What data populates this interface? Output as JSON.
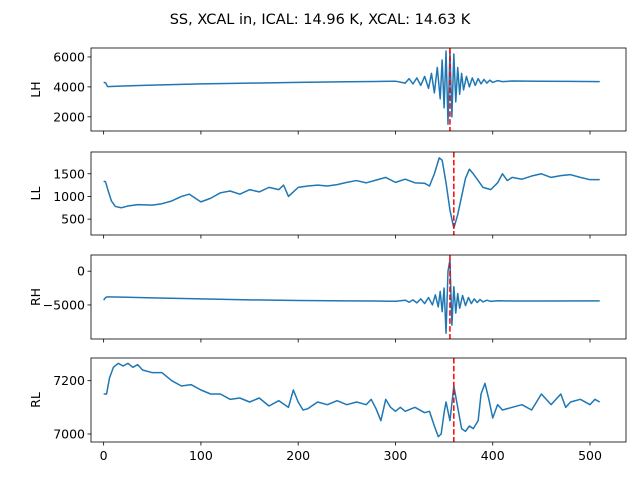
{
  "chart_data": {
    "type": "line",
    "title": "SS, XCAL in, ICAL: 14.96 K, XCAL: 14.63 K",
    "x_ticks": [
      0,
      100,
      200,
      300,
      400,
      500
    ],
    "xlim": [
      -13,
      537
    ],
    "series_color": "#1f77b4",
    "marker_color": "#ff0000",
    "panels": [
      {
        "ylabel": "LH",
        "ylim": [
          1050,
          6600
        ],
        "y_ticks": [
          2000,
          4000,
          6000
        ],
        "y_tick_labels": [
          "2000",
          "4000",
          "6000"
        ],
        "marker_x": 356,
        "points": [
          [
            0,
            4300
          ],
          [
            2,
            4280
          ],
          [
            4,
            4020
          ],
          [
            20,
            4060
          ],
          [
            50,
            4120
          ],
          [
            100,
            4200
          ],
          [
            150,
            4250
          ],
          [
            200,
            4300
          ],
          [
            250,
            4340
          ],
          [
            280,
            4360
          ],
          [
            300,
            4380
          ],
          [
            310,
            4250
          ],
          [
            314,
            4550
          ],
          [
            318,
            4200
          ],
          [
            322,
            4600
          ],
          [
            326,
            4100
          ],
          [
            330,
            4700
          ],
          [
            334,
            3900
          ],
          [
            337,
            4900
          ],
          [
            340,
            3600
          ],
          [
            343,
            5300
          ],
          [
            346,
            3200
          ],
          [
            348,
            5800
          ],
          [
            350,
            2600
          ],
          [
            352,
            6400
          ],
          [
            354,
            1500
          ],
          [
            356,
            6400
          ],
          [
            358,
            2000
          ],
          [
            360,
            6200
          ],
          [
            362,
            3000
          ],
          [
            364,
            5300
          ],
          [
            366,
            3500
          ],
          [
            368,
            4900
          ],
          [
            370,
            3800
          ],
          [
            373,
            4700
          ],
          [
            376,
            4000
          ],
          [
            379,
            4600
          ],
          [
            382,
            4100
          ],
          [
            385,
            4550
          ],
          [
            388,
            4200
          ],
          [
            391,
            4500
          ],
          [
            394,
            4250
          ],
          [
            397,
            4450
          ],
          [
            400,
            4300
          ],
          [
            405,
            4420
          ],
          [
            410,
            4350
          ],
          [
            420,
            4390
          ],
          [
            450,
            4380
          ],
          [
            480,
            4370
          ],
          [
            510,
            4350
          ]
        ]
      },
      {
        "ylabel": "LL",
        "ylim": [
          150,
          1980
        ],
        "y_ticks": [
          500,
          1000,
          1500
        ],
        "y_tick_labels": [
          "500",
          "1000",
          "1500"
        ],
        "marker_x": 360,
        "points": [
          [
            0,
            1340
          ],
          [
            2,
            1320
          ],
          [
            5,
            1100
          ],
          [
            8,
            900
          ],
          [
            12,
            780
          ],
          [
            18,
            750
          ],
          [
            25,
            790
          ],
          [
            35,
            820
          ],
          [
            50,
            810
          ],
          [
            60,
            840
          ],
          [
            70,
            900
          ],
          [
            80,
            1000
          ],
          [
            88,
            1050
          ],
          [
            95,
            950
          ],
          [
            100,
            880
          ],
          [
            110,
            960
          ],
          [
            120,
            1080
          ],
          [
            130,
            1120
          ],
          [
            140,
            1050
          ],
          [
            150,
            1150
          ],
          [
            160,
            1100
          ],
          [
            170,
            1200
          ],
          [
            180,
            1150
          ],
          [
            185,
            1250
          ],
          [
            190,
            1000
          ],
          [
            195,
            1100
          ],
          [
            200,
            1200
          ],
          [
            210,
            1230
          ],
          [
            220,
            1250
          ],
          [
            230,
            1230
          ],
          [
            240,
            1260
          ],
          [
            250,
            1310
          ],
          [
            260,
            1350
          ],
          [
            270,
            1300
          ],
          [
            280,
            1360
          ],
          [
            290,
            1420
          ],
          [
            300,
            1310
          ],
          [
            310,
            1380
          ],
          [
            320,
            1300
          ],
          [
            330,
            1290
          ],
          [
            335,
            1230
          ],
          [
            340,
            1500
          ],
          [
            345,
            1850
          ],
          [
            348,
            1800
          ],
          [
            352,
            1300
          ],
          [
            356,
            700
          ],
          [
            360,
            300
          ],
          [
            364,
            600
          ],
          [
            368,
            1000
          ],
          [
            372,
            1400
          ],
          [
            376,
            1600
          ],
          [
            380,
            1500
          ],
          [
            385,
            1350
          ],
          [
            390,
            1200
          ],
          [
            398,
            1150
          ],
          [
            405,
            1300
          ],
          [
            410,
            1500
          ],
          [
            415,
            1350
          ],
          [
            420,
            1420
          ],
          [
            430,
            1380
          ],
          [
            440,
            1450
          ],
          [
            450,
            1500
          ],
          [
            460,
            1420
          ],
          [
            470,
            1460
          ],
          [
            480,
            1480
          ],
          [
            490,
            1420
          ],
          [
            500,
            1370
          ],
          [
            510,
            1370
          ]
        ]
      },
      {
        "ylabel": "RH",
        "ylim": [
          -10050,
          2400
        ],
        "y_ticks": [
          -5000,
          0
        ],
        "y_tick_labels": [
          "−5000",
          "0"
        ],
        "marker_x": 356,
        "points": [
          [
            0,
            -4300
          ],
          [
            2,
            -3900
          ],
          [
            4,
            -3800
          ],
          [
            50,
            -3950
          ],
          [
            100,
            -4100
          ],
          [
            150,
            -4250
          ],
          [
            200,
            -4350
          ],
          [
            250,
            -4400
          ],
          [
            280,
            -4420
          ],
          [
            300,
            -4450
          ],
          [
            310,
            -4300
          ],
          [
            314,
            -4600
          ],
          [
            318,
            -4250
          ],
          [
            322,
            -4700
          ],
          [
            326,
            -4100
          ],
          [
            330,
            -4800
          ],
          [
            334,
            -3900
          ],
          [
            338,
            -5000
          ],
          [
            341,
            -3500
          ],
          [
            344,
            -5300
          ],
          [
            346,
            -3000
          ],
          [
            348,
            -6000
          ],
          [
            350,
            -2500
          ],
          [
            352,
            -9200
          ],
          [
            354,
            0
          ],
          [
            356,
            1700
          ],
          [
            358,
            -8000
          ],
          [
            360,
            -2300
          ],
          [
            362,
            -6200
          ],
          [
            364,
            -3300
          ],
          [
            366,
            -5500
          ],
          [
            369,
            -3600
          ],
          [
            372,
            -5100
          ],
          [
            375,
            -3900
          ],
          [
            378,
            -4800
          ],
          [
            381,
            -4100
          ],
          [
            384,
            -4650
          ],
          [
            387,
            -4200
          ],
          [
            390,
            -4550
          ],
          [
            394,
            -4300
          ],
          [
            398,
            -4480
          ],
          [
            405,
            -4380
          ],
          [
            420,
            -4420
          ],
          [
            450,
            -4420
          ],
          [
            510,
            -4400
          ]
        ]
      },
      {
        "ylabel": "RL",
        "ylim": [
          6970,
          7285
        ],
        "y_ticks": [
          7000,
          7200
        ],
        "y_tick_labels": [
          "7000",
          "7200"
        ],
        "marker_x": 360,
        "points": [
          [
            0,
            7150
          ],
          [
            3,
            7150
          ],
          [
            6,
            7210
          ],
          [
            10,
            7250
          ],
          [
            15,
            7265
          ],
          [
            20,
            7255
          ],
          [
            25,
            7265
          ],
          [
            30,
            7250
          ],
          [
            35,
            7260
          ],
          [
            40,
            7240
          ],
          [
            50,
            7230
          ],
          [
            60,
            7230
          ],
          [
            70,
            7200
          ],
          [
            80,
            7180
          ],
          [
            90,
            7185
          ],
          [
            100,
            7165
          ],
          [
            110,
            7150
          ],
          [
            120,
            7150
          ],
          [
            130,
            7130
          ],
          [
            140,
            7135
          ],
          [
            150,
            7120
          ],
          [
            160,
            7135
          ],
          [
            170,
            7105
          ],
          [
            180,
            7125
          ],
          [
            190,
            7100
          ],
          [
            195,
            7165
          ],
          [
            200,
            7120
          ],
          [
            205,
            7090
          ],
          [
            210,
            7095
          ],
          [
            220,
            7120
          ],
          [
            230,
            7110
          ],
          [
            240,
            7125
          ],
          [
            250,
            7110
          ],
          [
            260,
            7120
          ],
          [
            270,
            7110
          ],
          [
            275,
            7130
          ],
          [
            280,
            7095
          ],
          [
            285,
            7050
          ],
          [
            290,
            7130
          ],
          [
            295,
            7100
          ],
          [
            300,
            7085
          ],
          [
            305,
            7100
          ],
          [
            310,
            7085
          ],
          [
            320,
            7100
          ],
          [
            330,
            7080
          ],
          [
            335,
            7085
          ],
          [
            340,
            7030
          ],
          [
            344,
            6990
          ],
          [
            347,
            7000
          ],
          [
            350,
            7080
          ],
          [
            352,
            7120
          ],
          [
            356,
            7050
          ],
          [
            360,
            7180
          ],
          [
            364,
            7100
          ],
          [
            368,
            7020
          ],
          [
            372,
            7010
          ],
          [
            376,
            7030
          ],
          [
            380,
            7020
          ],
          [
            385,
            7050
          ],
          [
            388,
            7150
          ],
          [
            392,
            7190
          ],
          [
            396,
            7130
          ],
          [
            400,
            7060
          ],
          [
            405,
            7110
          ],
          [
            410,
            7090
          ],
          [
            420,
            7100
          ],
          [
            430,
            7110
          ],
          [
            440,
            7090
          ],
          [
            450,
            7150
          ],
          [
            460,
            7110
          ],
          [
            470,
            7150
          ],
          [
            475,
            7100
          ],
          [
            480,
            7120
          ],
          [
            490,
            7130
          ],
          [
            500,
            7110
          ],
          [
            505,
            7130
          ],
          [
            510,
            7120
          ]
        ]
      }
    ]
  }
}
